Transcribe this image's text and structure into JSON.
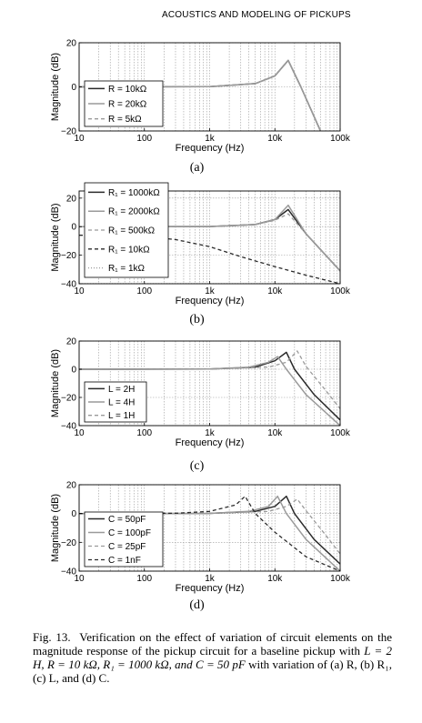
{
  "header": {
    "running_head": "ACOUSTICS AND MODELING OF PICKUPS"
  },
  "caption": {
    "label": "Fig. 13.",
    "text_a": "Verification on the effect of variation of circuit elements on the magnitude response of the pickup circuit for a baseline pickup with ",
    "baseline": "L = 2 H, R = 10 kΩ, R₁ = 1000 kΩ, and C = 50 pF",
    "text_b": " with variation of (a) R, (b) R₁, (c) L, and (d) C."
  },
  "chart_data": [
    {
      "type": "line",
      "panel": "(a)",
      "xlabel": "Frequency (Hz)",
      "ylabel": "Magnitude (dB)",
      "xscale": "log",
      "xlim": [
        10,
        100000
      ],
      "ylim": [
        -20,
        20
      ],
      "xticks": [
        "10",
        "100",
        "1k",
        "10k",
        "100k"
      ],
      "yticks": [
        "20",
        "0",
        "−20"
      ],
      "legend_position": "bottom-left",
      "grid": true,
      "series": [
        {
          "name": "R = 10kΩ",
          "style": "solid-dark",
          "x": [
            10,
            1000,
            5000,
            10000,
            16000,
            25000,
            50000
          ],
          "y": [
            0,
            0.1,
            1.5,
            5,
            12,
            0,
            -20
          ]
        },
        {
          "name": "R = 20kΩ",
          "style": "solid-gray",
          "x": [
            10,
            1000,
            5000,
            10000,
            16000,
            25000,
            50000
          ],
          "y": [
            0,
            0.1,
            1.5,
            5,
            12,
            0,
            -20
          ]
        },
        {
          "name": "R = 5kΩ",
          "style": "dashed-gray",
          "x": [
            10,
            1000,
            5000,
            10000,
            16000,
            25000,
            50000
          ],
          "y": [
            0,
            0.1,
            1.5,
            5,
            12,
            0,
            -20
          ]
        }
      ]
    },
    {
      "type": "line",
      "panel": "(b)",
      "xlabel": "Frequency (Hz)",
      "ylabel": "Magnitude (dB)",
      "xscale": "log",
      "xlim": [
        10,
        100000
      ],
      "ylim": [
        -40,
        25
      ],
      "xticks": [
        "10",
        "100",
        "1k",
        "10k",
        "100k"
      ],
      "yticks": [
        "20",
        "0",
        "−20",
        "−40"
      ],
      "legend_position": "top-left",
      "grid": true,
      "series": [
        {
          "name": "R₁ = 1000kΩ",
          "style": "solid-dark",
          "x": [
            10,
            1000,
            5000,
            10000,
            16000,
            30000,
            100000
          ],
          "y": [
            0,
            0.1,
            1.5,
            5,
            12,
            -5,
            -31
          ]
        },
        {
          "name": "R₁ = 2000kΩ",
          "style": "solid-gray",
          "x": [
            10,
            1000,
            5000,
            10000,
            16000,
            30000,
            100000
          ],
          "y": [
            0,
            0.1,
            1.5,
            5,
            15,
            -5,
            -31
          ]
        },
        {
          "name": "R₁ = 500kΩ",
          "style": "dashed-gray",
          "x": [
            10,
            1000,
            5000,
            10000,
            16000,
            30000,
            100000
          ],
          "y": [
            0,
            0.1,
            1.5,
            4.5,
            9,
            -5,
            -31
          ]
        },
        {
          "name": "R₁ = 10kΩ",
          "style": "dashed-dark",
          "x": [
            10,
            50,
            100,
            300,
            1000,
            3000,
            10000,
            30000,
            100000
          ],
          "y": [
            -6,
            -6.5,
            -7,
            -9,
            -14,
            -21,
            -28,
            -34,
            -40
          ]
        },
        {
          "name": "R₁ = 1kΩ",
          "style": "dotted-gray",
          "x": [
            10,
            100000
          ],
          "y": [
            -40,
            -40
          ]
        }
      ]
    },
    {
      "type": "line",
      "panel": "(c)",
      "xlabel": "Frequency (Hz)",
      "ylabel": "Magnitude (dB)",
      "xscale": "log",
      "xlim": [
        10,
        100000
      ],
      "ylim": [
        -40,
        20
      ],
      "xticks": [
        "10",
        "100",
        "1k",
        "10k",
        "100k"
      ],
      "yticks": [
        "20",
        "0",
        "−20",
        "−40"
      ],
      "legend_position": "bottom-left",
      "grid": true,
      "series": [
        {
          "name": "L = 2H",
          "style": "solid-dark",
          "x": [
            10,
            1000,
            5000,
            10000,
            15000,
            20000,
            40000,
            100000
          ],
          "y": [
            0,
            0.1,
            1.5,
            6,
            12,
            0,
            -18,
            -36
          ]
        },
        {
          "name": "L = 4H",
          "style": "solid-gray",
          "x": [
            10,
            1000,
            4000,
            8000,
            11000,
            15000,
            30000,
            100000
          ],
          "y": [
            0,
            0.1,
            1.5,
            5,
            9,
            0,
            -18,
            -40
          ]
        },
        {
          "name": "L = 1H",
          "style": "dashed-gray",
          "x": [
            10,
            1000,
            8000,
            15000,
            22000,
            30000,
            60000,
            100000
          ],
          "y": [
            0,
            0.1,
            1.5,
            5,
            13,
            2,
            -15,
            -28
          ]
        }
      ]
    },
    {
      "type": "line",
      "panel": "(d)",
      "xlabel": "Frequency (Hz)",
      "ylabel": "Magnitude (dB)",
      "xscale": "log",
      "xlim": [
        10,
        100000
      ],
      "ylim": [
        -40,
        20
      ],
      "xticks": [
        "10",
        "100",
        "1k",
        "10k",
        "100k"
      ],
      "yticks": [
        "20",
        "0",
        "−20",
        "−40"
      ],
      "legend_position": "bottom-left",
      "grid": true,
      "series": [
        {
          "name": "C = 50pF",
          "style": "solid-dark",
          "x": [
            10,
            1000,
            5000,
            10000,
            15000,
            20000,
            40000,
            100000
          ],
          "y": [
            0,
            0.1,
            1.5,
            5,
            12,
            0,
            -18,
            -35
          ]
        },
        {
          "name": "C = 100pF",
          "style": "solid-gray",
          "x": [
            10,
            1000,
            4000,
            8000,
            11000,
            15000,
            30000,
            100000
          ],
          "y": [
            0,
            0.1,
            1.5,
            5,
            12,
            0,
            -18,
            -40
          ]
        },
        {
          "name": "C = 25pF",
          "style": "dashed-gray",
          "x": [
            10,
            1000,
            8000,
            15000,
            22000,
            30000,
            60000,
            100000
          ],
          "y": [
            0,
            0.1,
            1.5,
            5,
            10,
            2,
            -15,
            -28
          ]
        },
        {
          "name": "C = 1nF",
          "style": "dashed-dark",
          "x": [
            10,
            300,
            1000,
            2500,
            3500,
            5000,
            10000,
            30000,
            100000
          ],
          "y": [
            0,
            0.2,
            1.5,
            6,
            12,
            0,
            -13,
            -30,
            -40
          ]
        }
      ]
    }
  ],
  "subfigure_labels": [
    "(a)",
    "(b)",
    "(c)",
    "(d)"
  ]
}
